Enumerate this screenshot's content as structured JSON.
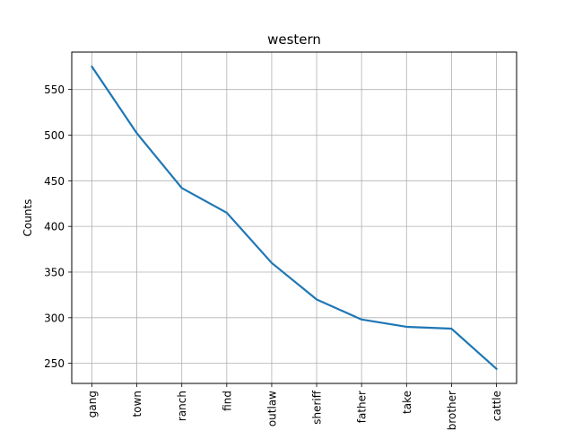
{
  "chart_data": {
    "type": "line",
    "title": "western",
    "xlabel": "",
    "ylabel": "Counts",
    "categories": [
      "gang",
      "town",
      "ranch",
      "find",
      "outlaw",
      "sheriff",
      "father",
      "take",
      "brother",
      "cattle"
    ],
    "values": [
      575,
      502,
      442,
      415,
      360,
      320,
      298,
      290,
      288,
      244
    ],
    "ylim": [
      228,
      591
    ],
    "yticks": [
      250,
      300,
      350,
      400,
      450,
      500,
      550
    ],
    "grid": true,
    "line_color": "#1f77b4"
  }
}
